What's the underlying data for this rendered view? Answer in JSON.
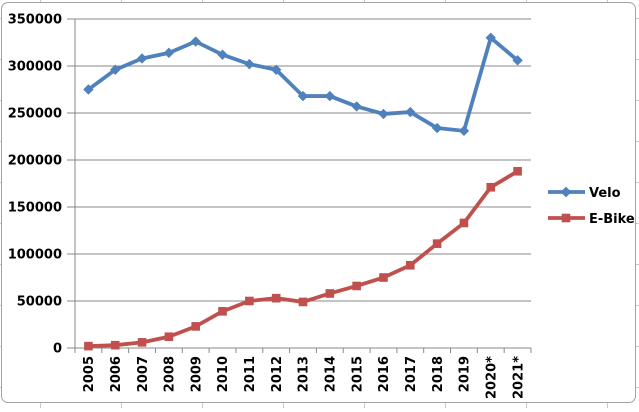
{
  "chart_data": {
    "type": "line",
    "title": "",
    "xlabel": "",
    "ylabel": "",
    "categories": [
      "2005",
      "2006",
      "2007",
      "2008",
      "2009",
      "2010",
      "2011",
      "2012",
      "2013",
      "2014",
      "2015",
      "2016",
      "2017",
      "2018",
      "2019",
      "2020*",
      "2021*"
    ],
    "series": [
      {
        "name": "Velo",
        "color": "#4F81BD",
        "marker": "diamond",
        "values": [
          275000,
          296000,
          308000,
          314000,
          326000,
          312000,
          302000,
          296000,
          268000,
          268000,
          257000,
          249000,
          251000,
          234000,
          231000,
          330000,
          306000
        ]
      },
      {
        "name": "E-Bike",
        "color": "#C0504D",
        "marker": "square",
        "values": [
          2000,
          3000,
          6000,
          12000,
          23000,
          39000,
          50000,
          53000,
          49000,
          58000,
          66000,
          75000,
          88000,
          111000,
          133000,
          171000,
          188000
        ]
      }
    ],
    "ylim": [
      0,
      350000
    ],
    "ytick_step": 50000,
    "ytick_labels": [
      "0",
      "50000",
      "100000",
      "150000",
      "200000",
      "250000",
      "300000",
      "350000"
    ],
    "grid": true,
    "legend_position": "right-middle",
    "x_label_rotation_deg": -90
  },
  "colors": {
    "gridline": "#898989",
    "axis": "#898989",
    "label_text": "#000000",
    "chart_frame_border": "#a3a3a3",
    "worksheet_gridline": "#c9c9c9",
    "background": "#ffffff"
  }
}
